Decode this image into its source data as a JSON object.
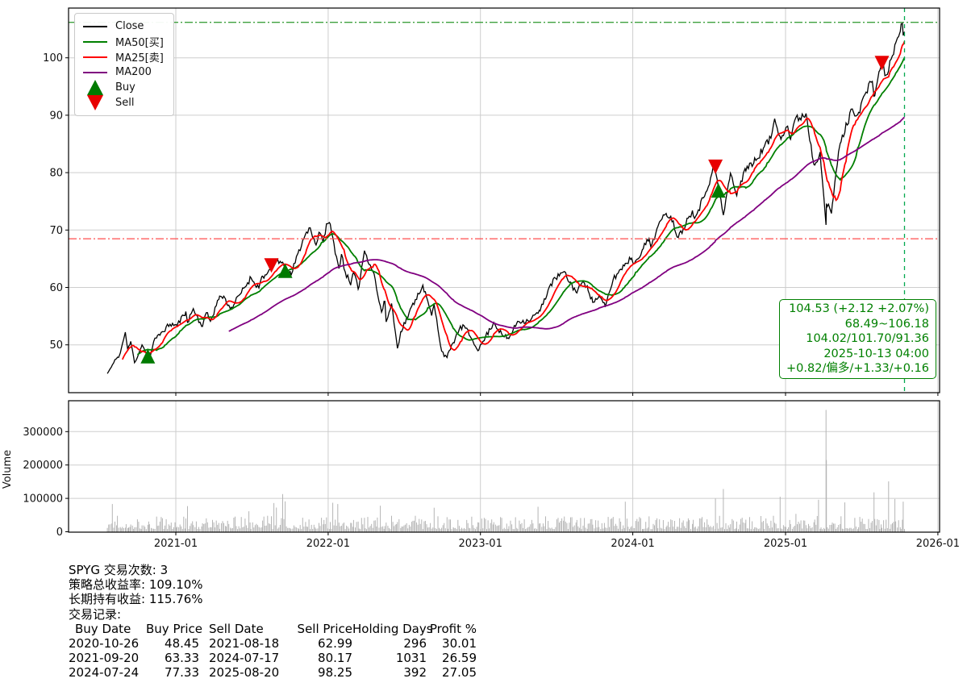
{
  "chart_data": {
    "type": "line",
    "symbol": "SPYG",
    "x_ticks": [
      "2021-01",
      "2022-01",
      "2023-01",
      "2024-01",
      "2025-01",
      "2026-01"
    ],
    "y_ticks": [
      50,
      60,
      70,
      80,
      90,
      100
    ],
    "ylim": [
      41.5,
      106.9
    ],
    "grid": true,
    "legend_position": "upper-left",
    "series": [
      {
        "name": "Close",
        "color": "#000000",
        "anchors": [
          [
            "2020-07-21",
            45.0
          ],
          [
            "2020-07-31",
            46.2
          ],
          [
            "2020-08-12",
            47.6
          ],
          [
            "2020-08-21",
            48.6
          ],
          [
            "2020-09-02",
            52.2
          ],
          [
            "2020-09-08",
            49.0
          ],
          [
            "2020-09-15",
            50.6
          ],
          [
            "2020-09-24",
            46.9
          ],
          [
            "2020-10-12",
            50.0
          ],
          [
            "2020-10-19",
            49.0
          ],
          [
            "2020-10-26",
            48.45
          ],
          [
            "2020-10-30",
            47.4
          ],
          [
            "2020-11-09",
            50.6
          ],
          [
            "2020-11-16",
            51.2
          ],
          [
            "2020-11-30",
            52.3
          ],
          [
            "2020-12-18",
            53.6
          ],
          [
            "2021-01-04",
            53.4
          ],
          [
            "2021-01-25",
            55.8
          ],
          [
            "2021-01-29",
            53.9
          ],
          [
            "2021-02-12",
            56.3
          ],
          [
            "2021-03-04",
            53.2
          ],
          [
            "2021-03-15",
            55.6
          ],
          [
            "2021-03-25",
            54.1
          ],
          [
            "2021-04-16",
            58.5
          ],
          [
            "2021-04-30",
            58.0
          ],
          [
            "2021-05-12",
            56.2
          ],
          [
            "2021-06-04",
            58.8
          ],
          [
            "2021-06-30",
            61.7
          ],
          [
            "2021-07-19",
            59.9
          ],
          [
            "2021-07-26",
            61.9
          ],
          [
            "2021-08-06",
            62.2
          ],
          [
            "2021-08-18",
            62.99
          ],
          [
            "2021-09-02",
            64.9
          ],
          [
            "2021-09-20",
            63.33
          ],
          [
            "2021-10-04",
            62.1
          ],
          [
            "2021-10-21",
            66.0
          ],
          [
            "2021-11-08",
            69.3
          ],
          [
            "2021-11-19",
            70.4
          ],
          [
            "2021-12-03",
            67.4
          ],
          [
            "2021-12-10",
            69.6
          ],
          [
            "2021-12-20",
            67.8
          ],
          [
            "2021-12-28",
            71.1
          ],
          [
            "2022-01-04",
            71.3
          ],
          [
            "2022-01-27",
            63.3
          ],
          [
            "2022-02-02",
            65.8
          ],
          [
            "2022-02-11",
            62.7
          ],
          [
            "2022-02-24",
            60.4
          ],
          [
            "2022-03-03",
            62.6
          ],
          [
            "2022-03-14",
            59.7
          ],
          [
            "2022-03-29",
            66.4
          ],
          [
            "2022-04-21",
            62.4
          ],
          [
            "2022-04-29",
            59.0
          ],
          [
            "2022-05-09",
            55.7
          ],
          [
            "2022-05-17",
            57.6
          ],
          [
            "2022-05-20",
            54.0
          ],
          [
            "2022-06-02",
            57.2
          ],
          [
            "2022-06-16",
            49.4
          ],
          [
            "2022-06-24",
            52.3
          ],
          [
            "2022-07-29",
            57.9
          ],
          [
            "2022-08-16",
            60.4
          ],
          [
            "2022-09-06",
            55.1
          ],
          [
            "2022-09-12",
            57.0
          ],
          [
            "2022-09-30",
            48.9
          ],
          [
            "2022-10-13",
            47.8
          ],
          [
            "2022-10-28",
            50.4
          ],
          [
            "2022-11-11",
            52.7
          ],
          [
            "2022-11-23",
            53.3
          ],
          [
            "2022-12-07",
            51.5
          ],
          [
            "2022-12-28",
            49.1
          ],
          [
            "2023-01-13",
            51.4
          ],
          [
            "2023-02-02",
            53.9
          ],
          [
            "2023-02-24",
            51.5
          ],
          [
            "2023-03-10",
            51.1
          ],
          [
            "2023-03-31",
            54.1
          ],
          [
            "2023-04-25",
            54.2
          ],
          [
            "2023-05-24",
            55.9
          ],
          [
            "2023-06-15",
            60.1
          ],
          [
            "2023-06-30",
            61.6
          ],
          [
            "2023-07-19",
            62.7
          ],
          [
            "2023-08-18",
            59.2
          ],
          [
            "2023-08-31",
            60.7
          ],
          [
            "2023-09-14",
            60.3
          ],
          [
            "2023-09-27",
            57.4
          ],
          [
            "2023-10-12",
            58.5
          ],
          [
            "2023-10-27",
            56.6
          ],
          [
            "2023-11-15",
            61.4
          ],
          [
            "2023-12-14",
            64.2
          ],
          [
            "2023-12-29",
            65.1
          ],
          [
            "2024-01-05",
            64.2
          ],
          [
            "2024-01-24",
            66.6
          ],
          [
            "2024-02-09",
            68.5
          ],
          [
            "2024-02-13",
            67.1
          ],
          [
            "2024-03-01",
            70.6
          ],
          [
            "2024-03-21",
            72.9
          ],
          [
            "2024-04-01",
            72.4
          ],
          [
            "2024-04-19",
            68.7
          ],
          [
            "2024-05-15",
            72.4
          ],
          [
            "2024-05-23",
            73.4
          ],
          [
            "2024-05-30",
            72.3
          ],
          [
            "2024-06-18",
            75.6
          ],
          [
            "2024-07-05",
            79.0
          ],
          [
            "2024-07-16",
            82.0
          ],
          [
            "2024-07-17",
            80.17
          ],
          [
            "2024-07-24",
            77.33
          ],
          [
            "2024-08-05",
            72.6
          ],
          [
            "2024-08-22",
            79.9
          ],
          [
            "2024-09-06",
            76.0
          ],
          [
            "2024-09-26",
            80.7
          ],
          [
            "2024-10-17",
            81.7
          ],
          [
            "2024-11-11",
            84.5
          ],
          [
            "2024-11-27",
            86.0
          ],
          [
            "2024-12-06",
            89.4
          ],
          [
            "2024-12-19",
            86.3
          ],
          [
            "2025-01-06",
            88.1
          ],
          [
            "2025-01-13",
            85.8
          ],
          [
            "2025-01-23",
            89.1
          ],
          [
            "2025-02-19",
            90.3
          ],
          [
            "2025-03-10",
            81.4
          ],
          [
            "2025-03-25",
            83.6
          ],
          [
            "2025-04-03",
            75.6
          ],
          [
            "2025-04-08",
            70.9
          ],
          [
            "2025-04-09",
            74.6
          ],
          [
            "2025-04-21",
            72.9
          ],
          [
            "2025-05-02",
            80.0
          ],
          [
            "2025-05-12",
            85.1
          ],
          [
            "2025-06-10",
            91.1
          ],
          [
            "2025-06-23",
            90.1
          ],
          [
            "2025-07-10",
            93.6
          ],
          [
            "2025-07-28",
            95.9
          ],
          [
            "2025-08-01",
            93.3
          ],
          [
            "2025-08-13",
            97.6
          ],
          [
            "2025-08-20",
            98.25
          ],
          [
            "2025-09-02",
            97.1
          ],
          [
            "2025-09-22",
            102.6
          ],
          [
            "2025-10-03",
            104.6
          ],
          [
            "2025-10-08",
            106.0
          ],
          [
            "2025-10-10",
            103.9
          ],
          [
            "2025-10-13",
            104.53
          ]
        ]
      },
      {
        "name": "MA50[买]",
        "color": "#008000",
        "window_days": 72
      },
      {
        "name": "MA25[卖]",
        "color": "#ff0000",
        "window_days": 35
      },
      {
        "name": "MA200",
        "color": "#800080",
        "window_days": 289
      }
    ],
    "markers": {
      "buy_color": "#007a00",
      "sell_color": "#e80000",
      "buys": [
        {
          "date": "2020-10-26",
          "price": 48.45
        },
        {
          "date": "2021-09-20",
          "price": 63.33
        },
        {
          "date": "2024-07-24",
          "price": 77.33
        }
      ],
      "sells": [
        {
          "date": "2021-08-18",
          "price": 62.99
        },
        {
          "date": "2024-07-17",
          "price": 80.17
        },
        {
          "date": "2025-08-20",
          "price": 98.25
        }
      ]
    },
    "ref_lines": {
      "upper": 106.18,
      "upper_color": "#3fa13f",
      "lower": 68.49,
      "lower_color": "#ff4d4d",
      "vline_date": "2025-10-13",
      "vline_color": "#00a84f"
    },
    "volume": {
      "ylabel": "Volume",
      "y_ticks": [
        0,
        100000,
        200000,
        300000
      ],
      "spikes": [
        [
          "2020-08-03",
          83000
        ],
        [
          "2021-08-23",
          86000
        ],
        [
          "2021-09-20",
          91000
        ],
        [
          "2022-01-13",
          87000
        ],
        [
          "2022-05-05",
          78000
        ],
        [
          "2022-09-13",
          72000
        ],
        [
          "2023-12-15",
          90000
        ],
        [
          "2024-08-05",
          128000
        ],
        [
          "2024-12-20",
          105000
        ],
        [
          "2025-03-21",
          96000
        ],
        [
          "2025-04-07",
          365000
        ],
        [
          "2025-04-09",
          215000
        ],
        [
          "2025-05-23",
          88000
        ],
        [
          "2025-08-01",
          118000
        ],
        [
          "2025-09-04",
          151000
        ],
        [
          "2025-09-19",
          98000
        ],
        [
          "2025-10-10",
          90000
        ]
      ]
    },
    "render": {
      "sample_days": 3,
      "seed": 11,
      "noise": 0.5
    }
  },
  "legend": {
    "items": [
      {
        "label": "Close"
      },
      {
        "label": "MA50[买]"
      },
      {
        "label": "MA25[卖]"
      },
      {
        "label": "MA200"
      },
      {
        "label": "Buy"
      },
      {
        "label": "Sell"
      }
    ]
  },
  "info_box": {
    "lines": [
      "104.53 (+2.12 +2.07%)",
      "68.49~106.18",
      "104.02/101.70/91.36",
      "2025-10-13 04:00",
      "+0.82/偏多/+1.33/+0.16"
    ]
  },
  "stats": {
    "line1": "SPYG 交易次数: 3",
    "line2": "策略总收益率: 109.10%",
    "line3": "长期持有收益: 115.76%",
    "line4": "交易记录:"
  },
  "trades": {
    "headers": [
      "Buy Date",
      "Buy Price",
      "Sell Date",
      "Sell Price",
      "Holding Days",
      "Profit %"
    ],
    "rows": [
      [
        "2020-10-26",
        "48.45",
        "2021-08-18",
        "62.99",
        "296",
        "30.01"
      ],
      [
        "2021-09-20",
        "63.33",
        "2024-07-17",
        "80.17",
        "1031",
        "26.59"
      ],
      [
        "2024-07-24",
        "77.33",
        "2025-08-20",
        "98.25",
        "392",
        "27.05"
      ]
    ]
  }
}
